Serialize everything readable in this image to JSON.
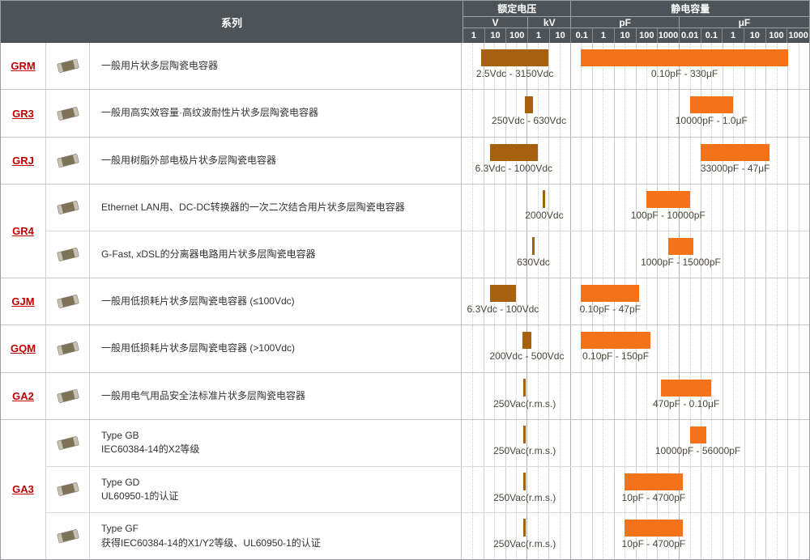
{
  "colors": {
    "header_bg": "#4d5457",
    "header_text": "#ffffff",
    "series_link": "#c00000",
    "voltage_bar": "#a7600e",
    "capacitance_bar": "#f4731a"
  },
  "chart_data": {
    "type": "table",
    "title": "",
    "scale": "log10 decades, one grid column per decade",
    "header": {
      "series_label": "系列",
      "voltage_group_label": "额定电压",
      "capacitance_group_label": "静电容量",
      "units": [
        {
          "label": "V",
          "columns": 3
        },
        {
          "label": "kV",
          "columns": 2
        },
        {
          "label": "pF",
          "columns": 5
        },
        {
          "label": "μF",
          "columns": 6
        }
      ],
      "tick_labels": [
        "1",
        "10",
        "100",
        "1",
        "10",
        "0.1",
        "1",
        "10",
        "100",
        "1000",
        "0.01",
        "0.1",
        "1",
        "10",
        "100",
        "1000"
      ],
      "voltage_axis_ticks_V": [
        1,
        10,
        100,
        1000,
        10000
      ],
      "capacitance_axis_ticks_pF": [
        0.1,
        1,
        10,
        100,
        1000,
        10000,
        100000,
        1000000,
        10000000,
        100000000,
        1000000000
      ]
    },
    "groups": [
      {
        "series": "GRM",
        "rows": [
          {
            "description": "一般用片状多层陶瓷电容器",
            "description_line2": "",
            "voltage": {
              "min_v": 2.5,
              "max_v": 3150,
              "label": "2.5Vdc - 3150Vdc"
            },
            "capacitance": {
              "min_pf": 0.1,
              "max_pf": 330000000,
              "label": "0.10pF - 330μF"
            }
          }
        ]
      },
      {
        "series": "GR3",
        "rows": [
          {
            "description": "一般用高实效容量·高纹波耐性片状多层陶瓷电容器",
            "description_line2": "",
            "voltage": {
              "min_v": 250,
              "max_v": 630,
              "label": "250Vdc - 630Vdc"
            },
            "capacitance": {
              "min_pf": 10000,
              "max_pf": 1000000,
              "label": "10000pF - 1.0μF"
            }
          }
        ]
      },
      {
        "series": "GRJ",
        "rows": [
          {
            "description": "一般用树脂外部电极片状多层陶瓷电容器",
            "description_line2": "",
            "voltage": {
              "min_v": 6.3,
              "max_v": 1000,
              "label": "6.3Vdc - 1000Vdc"
            },
            "capacitance": {
              "min_pf": 33000,
              "max_pf": 47000000,
              "label": "33000pF - 47μF"
            }
          }
        ]
      },
      {
        "series": "GR4",
        "rows": [
          {
            "description": "Ethernet LAN用、DC-DC转换器的一次二次结合用片状多层陶瓷电容器",
            "description_line2": "",
            "voltage": {
              "min_v": 2000,
              "max_v": 2000,
              "label": "2000Vdc"
            },
            "capacitance": {
              "min_pf": 100,
              "max_pf": 10000,
              "label": "100pF - 10000pF"
            }
          },
          {
            "description": "G-Fast, xDSL的分离器电路用片状多层陶瓷电容器",
            "description_line2": "",
            "voltage": {
              "min_v": 630,
              "max_v": 630,
              "label": "630Vdc"
            },
            "capacitance": {
              "min_pf": 1000,
              "max_pf": 15000,
              "label": "1000pF - 15000pF"
            }
          }
        ]
      },
      {
        "series": "GJM",
        "rows": [
          {
            "description": "一般用低损耗片状多层陶瓷电容器 (≤100Vdc)",
            "description_line2": "",
            "voltage": {
              "min_v": 6.3,
              "max_v": 100,
              "label": "6.3Vdc - 100Vdc"
            },
            "capacitance": {
              "min_pf": 0.1,
              "max_pf": 47,
              "label": "0.10pF - 47pF"
            }
          }
        ]
      },
      {
        "series": "GQM",
        "rows": [
          {
            "description": "一般用低损耗片状多层陶瓷电容器 (>100Vdc)",
            "description_line2": "",
            "voltage": {
              "min_v": 200,
              "max_v": 500,
              "label": "200Vdc - 500Vdc"
            },
            "capacitance": {
              "min_pf": 0.1,
              "max_pf": 150,
              "label": "0.10pF - 150pF"
            }
          }
        ]
      },
      {
        "series": "GA2",
        "rows": [
          {
            "description": "一般用电气用品安全法标准片状多层陶瓷电容器",
            "description_line2": "",
            "voltage": {
              "min_v": 250,
              "max_v": 250,
              "label": "250Vac(r.m.s.)"
            },
            "capacitance": {
              "min_pf": 470,
              "max_pf": 100000,
              "label": "470pF - 0.10μF"
            }
          }
        ]
      },
      {
        "series": "GA3",
        "rows": [
          {
            "description": "Type GB",
            "description_line2": "IEC60384-14的X2等级",
            "voltage": {
              "min_v": 250,
              "max_v": 250,
              "label": "250Vac(r.m.s.)"
            },
            "capacitance": {
              "min_pf": 10000,
              "max_pf": 56000,
              "label": "10000pF - 56000pF"
            }
          },
          {
            "description": "Type GD",
            "description_line2": "UL60950-1的认证",
            "voltage": {
              "min_v": 250,
              "max_v": 250,
              "label": "250Vac(r.m.s.)"
            },
            "capacitance": {
              "min_pf": 10,
              "max_pf": 4700,
              "label": "10pF - 4700pF"
            }
          },
          {
            "description": "Type GF",
            "description_line2": "获得IEC60384-14的X1/Y2等级、UL60950-1的认证",
            "voltage": {
              "min_v": 250,
              "max_v": 250,
              "label": "250Vac(r.m.s.)"
            },
            "capacitance": {
              "min_pf": 10,
              "max_pf": 4700,
              "label": "10pF - 4700pF"
            }
          }
        ]
      }
    ]
  }
}
